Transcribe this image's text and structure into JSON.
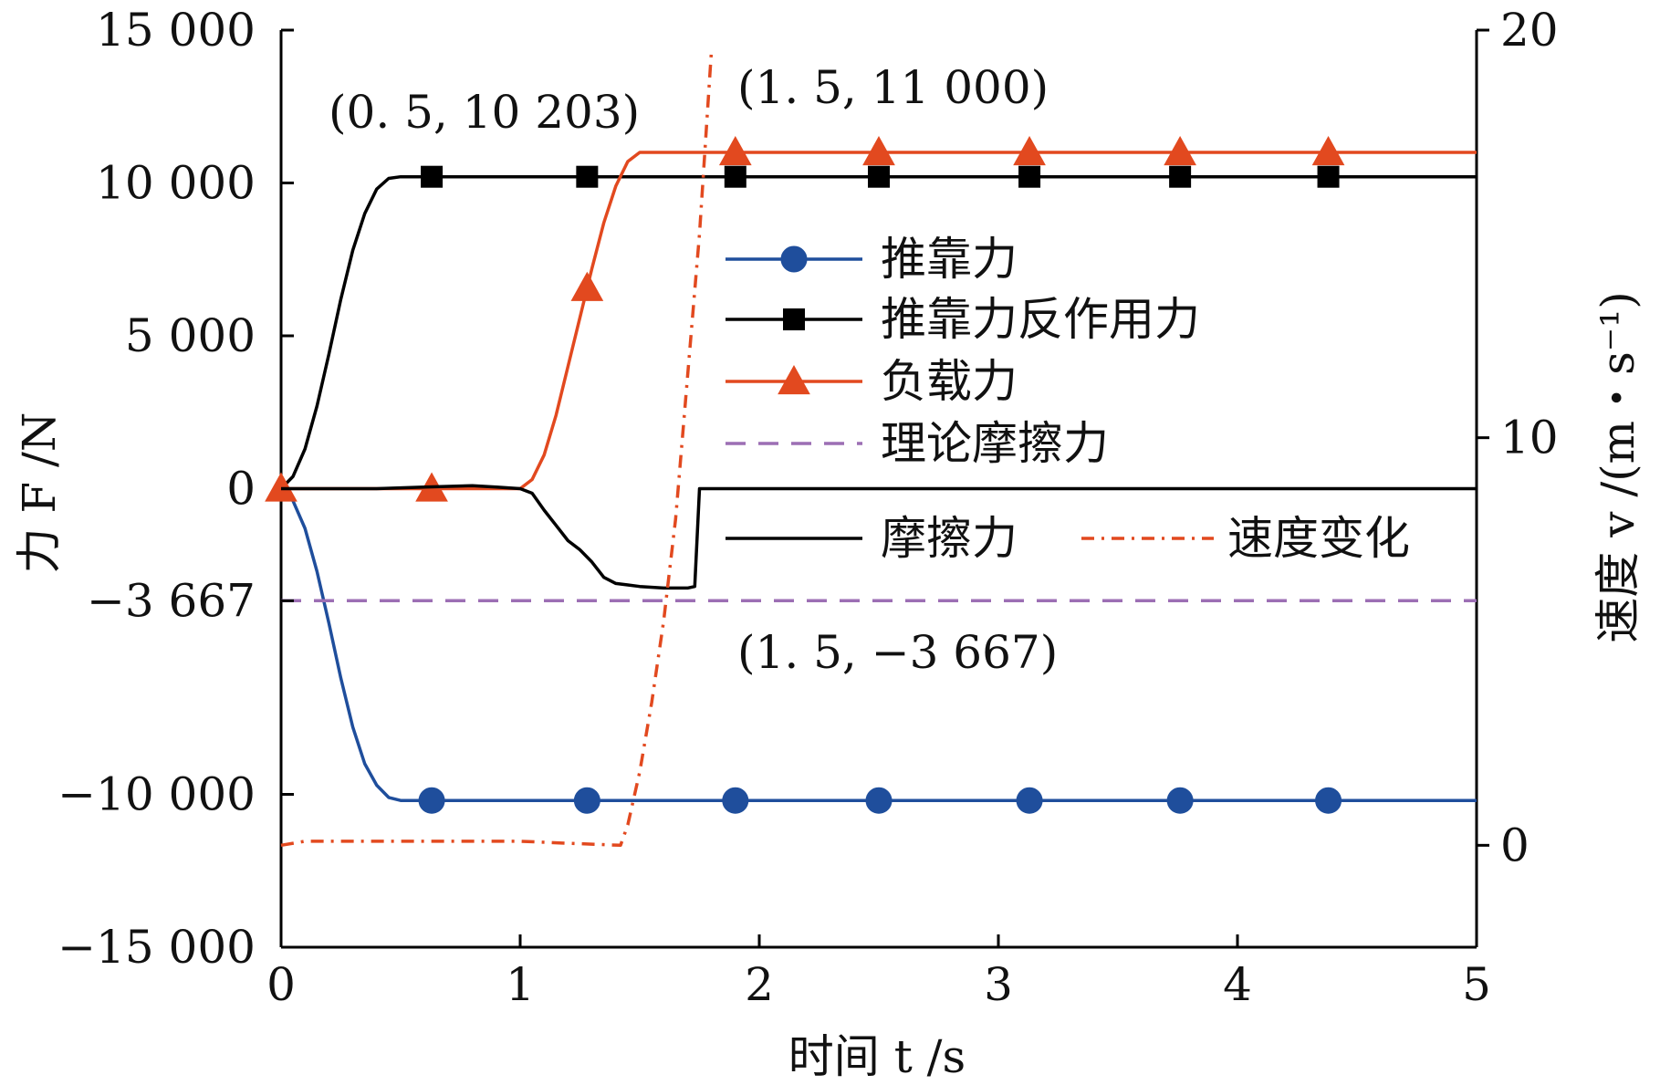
{
  "chart_data": {
    "type": "line",
    "xlabel": "时间 t /s",
    "ylabel": "力 F /N",
    "y2label": "速度 v /(m・s⁻¹)",
    "xlim": [
      0,
      5
    ],
    "ylim": [
      -15000,
      15000
    ],
    "y2lim": [
      -2.5,
      20
    ],
    "x_ticks": [
      "0",
      "1",
      "2",
      "3",
      "4",
      "5"
    ],
    "y_ticks": [
      {
        "value": 15000,
        "label": "15 000"
      },
      {
        "value": 10000,
        "label": "10 000"
      },
      {
        "value": 5000,
        "label": "5 000"
      },
      {
        "value": 0,
        "label": "0"
      },
      {
        "value": -3667,
        "label": "−3 667"
      },
      {
        "value": -10000,
        "label": "−10 000"
      },
      {
        "value": -15000,
        "label": "−15 000"
      }
    ],
    "y2_ticks": [
      {
        "value": 20,
        "label": "20"
      },
      {
        "value": 10,
        "label": "10"
      },
      {
        "value": 0,
        "label": "0"
      }
    ],
    "grid": false,
    "legend_position": "center-right",
    "series": [
      {
        "name": "推靠力",
        "axis": "left",
        "color": "#1f4e9c",
        "dash": "solid",
        "marker": "circle",
        "x": [
          0,
          0.05,
          0.1,
          0.15,
          0.2,
          0.25,
          0.3,
          0.35,
          0.4,
          0.45,
          0.5,
          1.0,
          2.0,
          3.0,
          4.0,
          5.0
        ],
        "y": [
          0,
          -400,
          -1300,
          -2700,
          -4400,
          -6200,
          -7800,
          -9000,
          -9700,
          -10100,
          -10200,
          -10200,
          -10200,
          -10200,
          -10200,
          -10200
        ],
        "marker_x": [
          0.63,
          1.28,
          1.9,
          2.5,
          3.13,
          3.76,
          4.38
        ]
      },
      {
        "name": "推靠力反作用力",
        "axis": "left",
        "color": "#000000",
        "dash": "solid",
        "marker": "square",
        "x": [
          0,
          0.05,
          0.1,
          0.15,
          0.2,
          0.25,
          0.3,
          0.35,
          0.4,
          0.45,
          0.5,
          1.0,
          2.0,
          3.0,
          4.0,
          5.0
        ],
        "y": [
          0,
          400,
          1300,
          2700,
          4400,
          6200,
          7800,
          9000,
          9800,
          10150,
          10203,
          10203,
          10203,
          10203,
          10203,
          10203
        ],
        "marker_x": [
          0.63,
          1.28,
          1.9,
          2.5,
          3.13,
          3.76,
          4.38
        ]
      },
      {
        "name": "负载力",
        "axis": "left",
        "color": "#e2491f",
        "dash": "solid",
        "marker": "triangle",
        "x": [
          0,
          1.0,
          1.05,
          1.1,
          1.15,
          1.2,
          1.25,
          1.3,
          1.35,
          1.4,
          1.45,
          1.5,
          2.0,
          3.0,
          4.0,
          5.0
        ],
        "y": [
          0,
          0,
          300,
          1100,
          2400,
          4000,
          5600,
          7200,
          8700,
          9900,
          10700,
          11000,
          11000,
          11000,
          11000,
          11000
        ],
        "marker_x": [
          0,
          0.63,
          1.28,
          1.9,
          2.5,
          3.13,
          3.76,
          4.38
        ]
      },
      {
        "name": "理论摩擦力",
        "axis": "left",
        "color": "#9c6fb4",
        "dash": "dashed",
        "marker": "none",
        "x": [
          0,
          5
        ],
        "y": [
          -3667,
          -3667
        ]
      },
      {
        "name": "摩擦力",
        "axis": "left",
        "color": "#000000",
        "dash": "solid",
        "marker": "none",
        "x": [
          0,
          0.2,
          0.4,
          0.6,
          0.8,
          0.9,
          1.0,
          1.05,
          1.1,
          1.15,
          1.2,
          1.25,
          1.3,
          1.35,
          1.4,
          1.45,
          1.5,
          1.6,
          1.7,
          1.73,
          1.75,
          1.76,
          2.0,
          3.0,
          4.0,
          5.0
        ],
        "y": [
          0,
          0,
          0,
          50,
          100,
          50,
          0,
          -150,
          -700,
          -1200,
          -1700,
          -2000,
          -2400,
          -2900,
          -3100,
          -3150,
          -3200,
          -3250,
          -3250,
          -3200,
          0,
          0,
          0,
          0,
          0,
          0
        ]
      },
      {
        "name": "速度变化",
        "axis": "right",
        "color": "#e2491f",
        "dash": "dashdot",
        "marker": "none",
        "x": [
          0,
          0.1,
          0.5,
          1.0,
          1.2,
          1.42,
          1.45,
          1.5,
          1.55,
          1.6,
          1.65,
          1.7,
          1.75,
          1.8
        ],
        "y": [
          0,
          0.1,
          0.1,
          0.1,
          0.05,
          0,
          0.5,
          1.8,
          3.5,
          5.5,
          8,
          11.5,
          15,
          19.5
        ]
      }
    ],
    "annotations": [
      {
        "text": "(0. 5, 10 203)"
      },
      {
        "text": "(1. 5, 11 000)"
      },
      {
        "text": "(1. 5, −3 667)"
      }
    ]
  }
}
